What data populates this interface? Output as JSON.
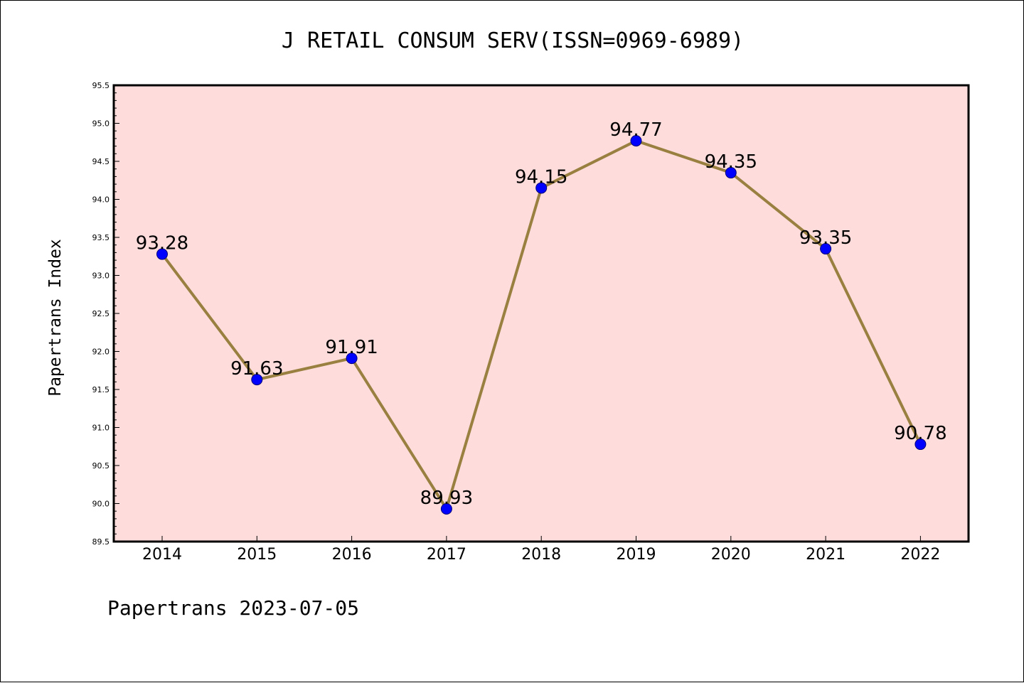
{
  "chart_data": {
    "type": "line",
    "title": "J RETAIL CONSUM SERV(ISSN=0969-6989)",
    "xlabel": "",
    "ylabel": "Papertrans Index",
    "categories": [
      "2014",
      "2015",
      "2016",
      "2017",
      "2018",
      "2019",
      "2020",
      "2021",
      "2022"
    ],
    "values": [
      93.28,
      91.63,
      91.91,
      89.93,
      94.15,
      94.77,
      94.35,
      93.35,
      90.78
    ],
    "data_labels": [
      "93.28",
      "91.63",
      "91.91",
      "89.93",
      "94.15",
      "94.77",
      "94.35",
      "93.35",
      "90.78"
    ],
    "ylim": [
      89.5,
      95.5
    ],
    "yticks": [
      "89.5",
      "90.0",
      "90.5",
      "91.0",
      "91.5",
      "92.0",
      "92.5",
      "93.0",
      "93.5",
      "94.0",
      "94.5",
      "95.0",
      "95.5"
    ],
    "grid": false,
    "legend": "none",
    "colors": {
      "plot_background": "#fddcdb",
      "line": "#9a8040",
      "marker": "#0000ff"
    }
  },
  "footer": "Papertrans 2023-07-05"
}
